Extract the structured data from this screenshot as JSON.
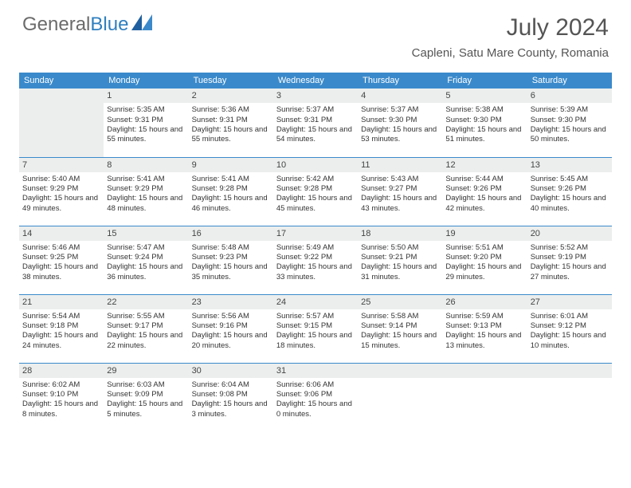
{
  "logo": {
    "text1": "General",
    "text2": "Blue"
  },
  "title": "July 2024",
  "location": "Capleni, Satu Mare County, Romania",
  "colors": {
    "header_bg": "#3a8acb",
    "header_text": "#ffffff",
    "daynum_bg": "#eceeee",
    "border": "#3a8acb",
    "logo_gray": "#6b6b6b",
    "logo_blue": "#2f7fbf",
    "text": "#333333",
    "title_color": "#555555"
  },
  "weekdays": [
    "Sunday",
    "Monday",
    "Tuesday",
    "Wednesday",
    "Thursday",
    "Friday",
    "Saturday"
  ],
  "weeks": [
    [
      {
        "day": "",
        "empty": true
      },
      {
        "day": "1",
        "sunrise": "Sunrise: 5:35 AM",
        "sunset": "Sunset: 9:31 PM",
        "daylight": "Daylight: 15 hours and 55 minutes."
      },
      {
        "day": "2",
        "sunrise": "Sunrise: 5:36 AM",
        "sunset": "Sunset: 9:31 PM",
        "daylight": "Daylight: 15 hours and 55 minutes."
      },
      {
        "day": "3",
        "sunrise": "Sunrise: 5:37 AM",
        "sunset": "Sunset: 9:31 PM",
        "daylight": "Daylight: 15 hours and 54 minutes."
      },
      {
        "day": "4",
        "sunrise": "Sunrise: 5:37 AM",
        "sunset": "Sunset: 9:30 PM",
        "daylight": "Daylight: 15 hours and 53 minutes."
      },
      {
        "day": "5",
        "sunrise": "Sunrise: 5:38 AM",
        "sunset": "Sunset: 9:30 PM",
        "daylight": "Daylight: 15 hours and 51 minutes."
      },
      {
        "day": "6",
        "sunrise": "Sunrise: 5:39 AM",
        "sunset": "Sunset: 9:30 PM",
        "daylight": "Daylight: 15 hours and 50 minutes."
      }
    ],
    [
      {
        "day": "7",
        "sunrise": "Sunrise: 5:40 AM",
        "sunset": "Sunset: 9:29 PM",
        "daylight": "Daylight: 15 hours and 49 minutes."
      },
      {
        "day": "8",
        "sunrise": "Sunrise: 5:41 AM",
        "sunset": "Sunset: 9:29 PM",
        "daylight": "Daylight: 15 hours and 48 minutes."
      },
      {
        "day": "9",
        "sunrise": "Sunrise: 5:41 AM",
        "sunset": "Sunset: 9:28 PM",
        "daylight": "Daylight: 15 hours and 46 minutes."
      },
      {
        "day": "10",
        "sunrise": "Sunrise: 5:42 AM",
        "sunset": "Sunset: 9:28 PM",
        "daylight": "Daylight: 15 hours and 45 minutes."
      },
      {
        "day": "11",
        "sunrise": "Sunrise: 5:43 AM",
        "sunset": "Sunset: 9:27 PM",
        "daylight": "Daylight: 15 hours and 43 minutes."
      },
      {
        "day": "12",
        "sunrise": "Sunrise: 5:44 AM",
        "sunset": "Sunset: 9:26 PM",
        "daylight": "Daylight: 15 hours and 42 minutes."
      },
      {
        "day": "13",
        "sunrise": "Sunrise: 5:45 AM",
        "sunset": "Sunset: 9:26 PM",
        "daylight": "Daylight: 15 hours and 40 minutes."
      }
    ],
    [
      {
        "day": "14",
        "sunrise": "Sunrise: 5:46 AM",
        "sunset": "Sunset: 9:25 PM",
        "daylight": "Daylight: 15 hours and 38 minutes."
      },
      {
        "day": "15",
        "sunrise": "Sunrise: 5:47 AM",
        "sunset": "Sunset: 9:24 PM",
        "daylight": "Daylight: 15 hours and 36 minutes."
      },
      {
        "day": "16",
        "sunrise": "Sunrise: 5:48 AM",
        "sunset": "Sunset: 9:23 PM",
        "daylight": "Daylight: 15 hours and 35 minutes."
      },
      {
        "day": "17",
        "sunrise": "Sunrise: 5:49 AM",
        "sunset": "Sunset: 9:22 PM",
        "daylight": "Daylight: 15 hours and 33 minutes."
      },
      {
        "day": "18",
        "sunrise": "Sunrise: 5:50 AM",
        "sunset": "Sunset: 9:21 PM",
        "daylight": "Daylight: 15 hours and 31 minutes."
      },
      {
        "day": "19",
        "sunrise": "Sunrise: 5:51 AM",
        "sunset": "Sunset: 9:20 PM",
        "daylight": "Daylight: 15 hours and 29 minutes."
      },
      {
        "day": "20",
        "sunrise": "Sunrise: 5:52 AM",
        "sunset": "Sunset: 9:19 PM",
        "daylight": "Daylight: 15 hours and 27 minutes."
      }
    ],
    [
      {
        "day": "21",
        "sunrise": "Sunrise: 5:54 AM",
        "sunset": "Sunset: 9:18 PM",
        "daylight": "Daylight: 15 hours and 24 minutes."
      },
      {
        "day": "22",
        "sunrise": "Sunrise: 5:55 AM",
        "sunset": "Sunset: 9:17 PM",
        "daylight": "Daylight: 15 hours and 22 minutes."
      },
      {
        "day": "23",
        "sunrise": "Sunrise: 5:56 AM",
        "sunset": "Sunset: 9:16 PM",
        "daylight": "Daylight: 15 hours and 20 minutes."
      },
      {
        "day": "24",
        "sunrise": "Sunrise: 5:57 AM",
        "sunset": "Sunset: 9:15 PM",
        "daylight": "Daylight: 15 hours and 18 minutes."
      },
      {
        "day": "25",
        "sunrise": "Sunrise: 5:58 AM",
        "sunset": "Sunset: 9:14 PM",
        "daylight": "Daylight: 15 hours and 15 minutes."
      },
      {
        "day": "26",
        "sunrise": "Sunrise: 5:59 AM",
        "sunset": "Sunset: 9:13 PM",
        "daylight": "Daylight: 15 hours and 13 minutes."
      },
      {
        "day": "27",
        "sunrise": "Sunrise: 6:01 AM",
        "sunset": "Sunset: 9:12 PM",
        "daylight": "Daylight: 15 hours and 10 minutes."
      }
    ],
    [
      {
        "day": "28",
        "sunrise": "Sunrise: 6:02 AM",
        "sunset": "Sunset: 9:10 PM",
        "daylight": "Daylight: 15 hours and 8 minutes."
      },
      {
        "day": "29",
        "sunrise": "Sunrise: 6:03 AM",
        "sunset": "Sunset: 9:09 PM",
        "daylight": "Daylight: 15 hours and 5 minutes."
      },
      {
        "day": "30",
        "sunrise": "Sunrise: 6:04 AM",
        "sunset": "Sunset: 9:08 PM",
        "daylight": "Daylight: 15 hours and 3 minutes."
      },
      {
        "day": "31",
        "sunrise": "Sunrise: 6:06 AM",
        "sunset": "Sunset: 9:06 PM",
        "daylight": "Daylight: 15 hours and 0 minutes."
      },
      {
        "day": "",
        "empty": true
      },
      {
        "day": "",
        "empty": true
      },
      {
        "day": "",
        "empty": true
      }
    ]
  ]
}
